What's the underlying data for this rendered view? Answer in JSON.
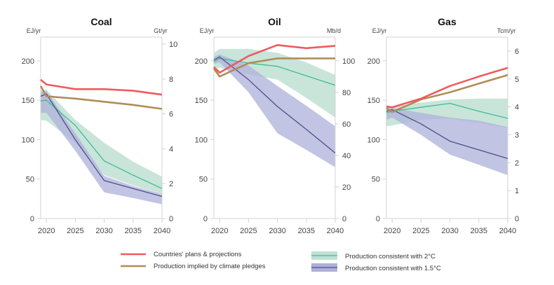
{
  "colors": {
    "plans": "#ef5a5e",
    "pledges": "#b08d57",
    "band2": "#bfe1d3",
    "line2": "#3dbc94",
    "band15": "#aeb0da",
    "line15": "#4f4d88",
    "axis": "#d3d3d3",
    "tickText": "#444444"
  },
  "legend": [
    {
      "key": "plans",
      "label": "Countries' plans & projections",
      "kind": "line"
    },
    {
      "key": "pledges",
      "label": "Production implied by climate pledges",
      "kind": "line"
    },
    {
      "key": "c2",
      "label": "Production consistent with 2°C",
      "kind": "band"
    },
    {
      "key": "c15",
      "label": "Production consistent with 1.5°C",
      "kind": "band"
    }
  ],
  "chart_data": [
    {
      "type": "line",
      "title": "Coal",
      "ylabel": "EJ/yr",
      "y2label": "Gt/yr",
      "xlim": [
        2019,
        2040
      ],
      "ylim": [
        0,
        230
      ],
      "y2lim": [
        0,
        10.4
      ],
      "xticks": [
        2020,
        2025,
        2030,
        2035,
        2040
      ],
      "yticks": [
        0,
        50,
        100,
        150,
        200
      ],
      "y2ticks": [
        0,
        2,
        4,
        6,
        8,
        10
      ],
      "series": [
        {
          "name": "Countries' plans & projections",
          "key": "plans",
          "x": [
            2019,
            2020,
            2025,
            2030,
            2035,
            2040
          ],
          "y": [
            176,
            170,
            164,
            164,
            162,
            157
          ]
        },
        {
          "name": "Production implied by climate pledges",
          "key": "pledges",
          "x": [
            2019,
            2020,
            2025,
            2030,
            2035,
            2040
          ],
          "y": [
            168,
            155,
            152,
            148,
            144,
            139
          ]
        },
        {
          "name": "Production consistent with 2°C",
          "key": "line2",
          "x": [
            2019,
            2020,
            2025,
            2030,
            2035,
            2040
          ],
          "y": [
            149,
            150,
            118,
            73,
            55,
            38
          ]
        },
        {
          "name": "Production consistent with 1.5°C",
          "key": "line15",
          "x": [
            2019,
            2020,
            2025,
            2030,
            2035,
            2040
          ],
          "y": [
            155,
            158,
            100,
            48,
            38,
            28
          ]
        }
      ],
      "bands": [
        {
          "name": "2°C range",
          "key": "band2",
          "x": [
            2019,
            2020,
            2025,
            2030,
            2035,
            2040
          ],
          "lower": [
            125,
            124,
            96,
            55,
            42,
            31
          ],
          "upper": [
            163,
            163,
            125,
            96,
            72,
            53
          ]
        },
        {
          "name": "1.5°C range",
          "key": "band15",
          "x": [
            2019,
            2020,
            2025,
            2030,
            2035,
            2040
          ],
          "lower": [
            134,
            134,
            86,
            33,
            26,
            18
          ],
          "upper": [
            160,
            162,
            108,
            54,
            41,
            31
          ]
        }
      ]
    },
    {
      "type": "line",
      "title": "Oil",
      "ylabel": "EJ/yr",
      "y2label": "Mb/d",
      "xlim": [
        2019,
        2040
      ],
      "ylim": [
        0,
        230
      ],
      "y2lim": [
        0,
        115
      ],
      "xticks": [
        2020,
        2025,
        2030,
        2035,
        2040
      ],
      "yticks": [
        0,
        50,
        100,
        150,
        200
      ],
      "y2ticks": [
        0,
        20,
        40,
        60,
        80,
        100
      ],
      "series": [
        {
          "name": "Countries' plans & projections",
          "key": "plans",
          "x": [
            2019,
            2020,
            2025,
            2030,
            2035,
            2040
          ],
          "y": [
            192,
            185,
            206,
            220,
            216,
            219
          ]
        },
        {
          "name": "Production implied by climate pledges",
          "key": "pledges",
          "x": [
            2019,
            2020,
            2025,
            2030,
            2035,
            2040
          ],
          "y": [
            190,
            180,
            197,
            203,
            203,
            203
          ]
        },
        {
          "name": "Production consistent with 2°C",
          "key": "line2",
          "x": [
            2019,
            2020,
            2025,
            2030,
            2035,
            2040
          ],
          "y": [
            199,
            203,
            197,
            193,
            181,
            169
          ]
        },
        {
          "name": "Production consistent with 1.5°C",
          "key": "line15",
          "x": [
            2019,
            2020,
            2025,
            2030,
            2035,
            2040
          ],
          "y": [
            201,
            205,
            176,
            142,
            113,
            83
          ]
        }
      ],
      "bands": [
        {
          "name": "2°C range",
          "key": "band2",
          "x": [
            2019,
            2020,
            2025,
            2030,
            2035,
            2040
          ],
          "lower": [
            190,
            191,
            183,
            176,
            153,
            128
          ],
          "upper": [
            210,
            215,
            215,
            210,
            198,
            182
          ]
        },
        {
          "name": "1.5°C range",
          "key": "band15",
          "x": [
            2019,
            2020,
            2025,
            2030,
            2035,
            2040
          ],
          "lower": [
            196,
            198,
            160,
            108,
            87,
            65
          ],
          "upper": [
            205,
            208,
            194,
            168,
            143,
            117
          ]
        }
      ]
    },
    {
      "type": "line",
      "title": "Gas",
      "ylabel": "EJ/yr",
      "y2label": "Tcm/yr",
      "xlim": [
        2019,
        2040
      ],
      "ylim": [
        0,
        230
      ],
      "y2lim": [
        0,
        6.5
      ],
      "xticks": [
        2020,
        2025,
        2030,
        2035,
        2040
      ],
      "yticks": [
        0,
        50,
        100,
        150,
        200
      ],
      "y2ticks": [
        0,
        1,
        2,
        3,
        4,
        5,
        6
      ],
      "series": [
        {
          "name": "Countries' plans & projections",
          "key": "plans",
          "x": [
            2019,
            2020,
            2025,
            2030,
            2035,
            2040
          ],
          "y": [
            142,
            141,
            152,
            168,
            180,
            191
          ]
        },
        {
          "name": "Production implied by climate pledges",
          "key": "pledges",
          "x": [
            2019,
            2020,
            2025,
            2030,
            2035,
            2040
          ],
          "y": [
            140,
            135,
            151,
            160,
            171,
            182
          ]
        },
        {
          "name": "Production consistent with 2°C",
          "key": "line2",
          "x": [
            2019,
            2020,
            2025,
            2030,
            2035,
            2040
          ],
          "y": [
            134,
            136,
            141,
            146,
            136,
            127
          ]
        },
        {
          "name": "Production consistent with 1.5°C",
          "key": "line15",
          "x": [
            2019,
            2020,
            2025,
            2030,
            2035,
            2040
          ],
          "y": [
            136,
            138,
            120,
            98,
            87,
            76
          ]
        }
      ],
      "bands": [
        {
          "name": "2°C range",
          "key": "band2",
          "x": [
            2019,
            2020,
            2025,
            2030,
            2035,
            2040
          ],
          "lower": [
            117,
            118,
            125,
            127,
            121,
            115
          ],
          "upper": [
            141,
            142,
            147,
            151,
            152,
            152
          ]
        },
        {
          "name": "1.5°C range",
          "key": "band15",
          "x": [
            2019,
            2020,
            2025,
            2030,
            2035,
            2040
          ],
          "lower": [
            125,
            128,
            106,
            81,
            68,
            55
          ],
          "upper": [
            139,
            140,
            134,
            128,
            124,
            116
          ]
        }
      ]
    }
  ]
}
